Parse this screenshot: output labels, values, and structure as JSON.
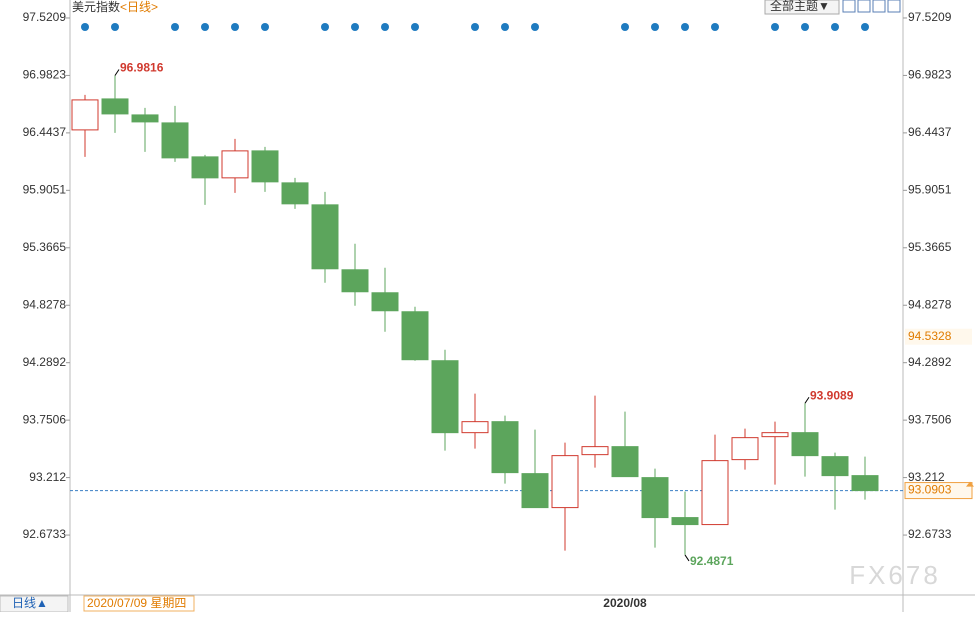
{
  "title": "美元指数",
  "period": "<日线>",
  "theme_button": "全部主题▼",
  "chart_data": {
    "type": "candlestick",
    "categories": [
      null,
      null,
      null,
      null,
      null,
      null,
      null,
      null,
      null,
      null,
      null,
      null,
      null,
      null,
      null,
      null,
      null,
      null,
      "2020/08",
      null,
      null,
      null,
      null,
      null,
      null,
      null,
      null
    ],
    "series": [
      {
        "open": [
          96.4717,
          96.7621,
          96.6122,
          96.5373,
          96.2188,
          96.0221,
          96.275,
          95.9752,
          95.7691,
          95.1602,
          94.9448,
          94.7668,
          94.3078,
          93.6333,
          93.7364,
          93.2492,
          92.9307,
          93.4272,
          93.5022,
          93.2118,
          92.8371,
          92.7715,
          93.3804,
          93.5958,
          93.6333,
          93.4085,
          93.2305
        ],
        "high": [
          96.7996,
          96.9816,
          96.6778,
          96.6965,
          96.2375,
          96.3874,
          96.3125,
          96.0221,
          95.8909,
          95.4038,
          95.179,
          94.8136,
          94.4108,
          93.9987,
          93.7926,
          93.6614,
          93.5396,
          93.9799,
          93.83,
          93.2961,
          93.0806,
          93.6146,
          93.6708,
          93.7364,
          93.9089,
          93.446,
          93.4085
        ],
        "low": [
          96.2188,
          96.4436,
          96.2656,
          96.172,
          95.7691,
          95.8816,
          95.8909,
          95.7317,
          95.0385,
          94.823,
          94.5794,
          94.3078,
          93.4647,
          93.4834,
          93.1556,
          92.9307,
          92.5279,
          93.3054,
          93.2211,
          92.556,
          92.4871,
          92.7715,
          93.2867,
          93.1462,
          93.2211,
          92.912,
          93.0057
        ],
        "close": [
          96.7528,
          96.6216,
          96.5467,
          96.2094,
          96.0221,
          96.275,
          95.9846,
          95.7785,
          95.1696,
          94.9542,
          94.7762,
          94.3172,
          93.6333,
          93.7364,
          93.2586,
          92.9307,
          93.4179,
          93.5022,
          93.2211,
          92.8371,
          92.7715,
          93.371,
          93.5865,
          93.6333,
          93.4179,
          93.2305,
          93.0903
        ]
      }
    ],
    "up_color": "#d0392e",
    "down_color": "#5ca55c",
    "ylim": [
      92.1113,
      97.6895
    ],
    "yticks": [
      92.6733,
      93.212,
      93.7506,
      94.2892,
      94.8278,
      95.3665,
      95.9051,
      96.4437,
      96.9823,
      97.5209
    ],
    "annotations": [
      96.9816,
      93.9089,
      92.4871
    ],
    "last_price": 93.0903,
    "marker_price": 94.5328
  },
  "footer": {
    "period_button": "日线▲",
    "cursor_date": "2020/07/09 星期四"
  },
  "watermark": "FX678"
}
